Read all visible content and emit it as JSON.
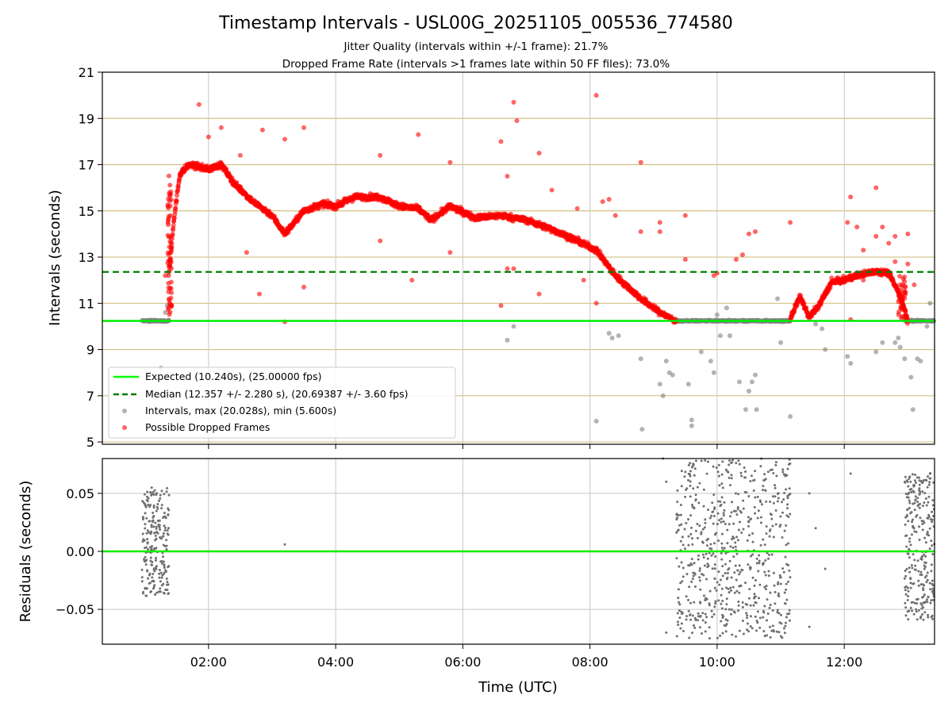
{
  "chart_data": [
    {
      "type": "scatter",
      "title": "Timestamp Intervals - USL00G_20251105_005536_774580",
      "subtitle_lines": [
        "Jitter Quality (intervals within +/-1 frame): 21.7%",
        "Dropped Frame Rate (intervals >1 frames late within 50 FF files): 73.0%"
      ],
      "xlabel": "",
      "ylabel": "Intervals (seconds)",
      "xlim_hours": [
        0.33,
        13.42
      ],
      "ylim": [
        4.9,
        21
      ],
      "yticks": [
        5,
        7,
        9,
        11,
        13,
        15,
        17,
        19,
        21
      ],
      "ytick_labels": [
        "5",
        "7",
        "9",
        "11",
        "13",
        "15",
        "17",
        "19",
        "21"
      ],
      "xticks_hours": [
        2,
        4,
        6,
        8,
        10,
        12
      ],
      "grid": "on",
      "legend_position": "lower-left",
      "legend": [
        "Expected (10.240s), (25.00000 fps)",
        "Median (12.357 +/- 2.280 s), (20.69387 +/- 3.60 fps)",
        "Intervals, max (20.028s), min (5.600s)",
        "Possible Dropped Frames"
      ],
      "expected_interval": 10.24,
      "median_interval": 12.357,
      "series": [
        {
          "name": "Intervals (normal)",
          "color": "#808080",
          "segments": [
            {
              "x_range": [
                0.95,
                1.38
              ],
              "y": 10.24
            },
            {
              "x_range": [
                9.35,
                11.15
              ],
              "y": 10.24
            },
            {
              "x_range": [
                12.95,
                13.42
              ],
              "y": 10.24
            }
          ],
          "outliers": [
            [
              1.32,
              10.6
            ],
            [
              1.35,
              10.9
            ],
            [
              1.25,
              8.2
            ],
            [
              6.7,
              9.4
            ],
            [
              6.8,
              10.0
            ],
            [
              8.1,
              5.9
            ],
            [
              8.3,
              9.7
            ],
            [
              8.35,
              9.5
            ],
            [
              8.45,
              9.6
            ],
            [
              8.8,
              8.6
            ],
            [
              8.82,
              5.55
            ],
            [
              9.1,
              7.5
            ],
            [
              9.15,
              7.0
            ],
            [
              9.2,
              8.5
            ],
            [
              9.25,
              8.0
            ],
            [
              9.3,
              7.9
            ],
            [
              9.55,
              7.5
            ],
            [
              9.6,
              5.7
            ],
            [
              9.6,
              5.95
            ],
            [
              9.75,
              8.9
            ],
            [
              9.9,
              8.5
            ],
            [
              9.95,
              8.0
            ],
            [
              10.0,
              10.5
            ],
            [
              10.05,
              9.6
            ],
            [
              10.15,
              10.8
            ],
            [
              10.2,
              9.6
            ],
            [
              10.35,
              7.6
            ],
            [
              10.45,
              6.4
            ],
            [
              10.5,
              7.2
            ],
            [
              10.55,
              7.6
            ],
            [
              10.6,
              7.9
            ],
            [
              10.62,
              6.4
            ],
            [
              10.95,
              11.2
            ],
            [
              11.0,
              9.3
            ],
            [
              11.15,
              6.1
            ],
            [
              11.55,
              10.1
            ],
            [
              11.65,
              9.9
            ],
            [
              11.7,
              9.0
            ],
            [
              12.05,
              8.7
            ],
            [
              12.1,
              8.4
            ],
            [
              12.5,
              8.9
            ],
            [
              12.6,
              9.3
            ],
            [
              12.8,
              9.3
            ],
            [
              12.85,
              9.5
            ],
            [
              12.88,
              9.1
            ],
            [
              12.95,
              8.6
            ],
            [
              13.05,
              7.8
            ],
            [
              13.08,
              6.4
            ],
            [
              13.15,
              8.6
            ],
            [
              13.2,
              8.5
            ],
            [
              13.3,
              10.0
            ],
            [
              13.35,
              11.0
            ]
          ]
        },
        {
          "name": "Possible Dropped Frames",
          "color": "#ff0000",
          "trend": [
            [
              1.38,
              12.3
            ],
            [
              1.45,
              14.5
            ],
            [
              1.55,
              16.6
            ],
            [
              1.7,
              17.0
            ],
            [
              2.0,
              16.8
            ],
            [
              2.2,
              17.0
            ],
            [
              2.4,
              16.2
            ],
            [
              2.7,
              15.4
            ],
            [
              3.0,
              14.8
            ],
            [
              3.2,
              14.0
            ],
            [
              3.5,
              15.0
            ],
            [
              3.8,
              15.3
            ],
            [
              4.0,
              15.2
            ],
            [
              4.3,
              15.6
            ],
            [
              4.7,
              15.6
            ],
            [
              5.0,
              15.2
            ],
            [
              5.3,
              15.1
            ],
            [
              5.5,
              14.6
            ],
            [
              5.8,
              15.2
            ],
            [
              6.2,
              14.7
            ],
            [
              6.6,
              14.8
            ],
            [
              7.0,
              14.6
            ],
            [
              7.4,
              14.2
            ],
            [
              7.8,
              13.7
            ],
            [
              8.1,
              13.3
            ],
            [
              8.4,
              12.2
            ],
            [
              8.8,
              11.2
            ],
            [
              9.1,
              10.6
            ],
            [
              9.35,
              10.24
            ],
            [
              11.15,
              10.3
            ],
            [
              11.3,
              11.3
            ],
            [
              11.45,
              10.4
            ],
            [
              11.6,
              10.9
            ],
            [
              11.8,
              11.9
            ],
            [
              12.0,
              12.0
            ],
            [
              12.2,
              12.2
            ],
            [
              12.5,
              12.4
            ],
            [
              12.7,
              12.3
            ],
            [
              12.9,
              11.2
            ],
            [
              13.0,
              10.2
            ]
          ],
          "outliers": [
            [
              1.32,
              12.2
            ],
            [
              1.85,
              19.6
            ],
            [
              2.0,
              18.2
            ],
            [
              2.2,
              18.6
            ],
            [
              2.5,
              17.4
            ],
            [
              2.85,
              18.5
            ],
            [
              2.8,
              11.4
            ],
            [
              3.2,
              18.1
            ],
            [
              3.2,
              10.2
            ],
            [
              3.5,
              18.6
            ],
            [
              3.5,
              11.7
            ],
            [
              2.6,
              13.2
            ],
            [
              4.7,
              17.4
            ],
            [
              5.3,
              18.3
            ],
            [
              4.7,
              13.7
            ],
            [
              5.2,
              12.0
            ],
            [
              5.8,
              17.1
            ],
            [
              5.8,
              13.2
            ],
            [
              6.6,
              18.0
            ],
            [
              6.6,
              10.9
            ],
            [
              6.7,
              16.5
            ],
            [
              6.7,
              12.5
            ],
            [
              6.8,
              19.7
            ],
            [
              6.85,
              18.9
            ],
            [
              6.8,
              12.5
            ],
            [
              7.2,
              17.5
            ],
            [
              7.2,
              11.4
            ],
            [
              7.4,
              15.9
            ],
            [
              7.8,
              15.1
            ],
            [
              7.9,
              12.0
            ],
            [
              8.1,
              20.0
            ],
            [
              8.1,
              11.0
            ],
            [
              8.2,
              15.4
            ],
            [
              8.3,
              15.5
            ],
            [
              8.4,
              14.8
            ],
            [
              8.8,
              17.1
            ],
            [
              8.8,
              14.1
            ],
            [
              9.1,
              14.5
            ],
            [
              9.1,
              14.1
            ],
            [
              9.5,
              14.8
            ],
            [
              9.5,
              12.9
            ],
            [
              9.95,
              12.2
            ],
            [
              10.0,
              12.3
            ],
            [
              10.3,
              12.9
            ],
            [
              10.4,
              13.1
            ],
            [
              10.5,
              14.0
            ],
            [
              10.6,
              14.1
            ],
            [
              11.15,
              14.5
            ],
            [
              11.8,
              12.1
            ],
            [
              12.05,
              14.5
            ],
            [
              12.1,
              15.6
            ],
            [
              12.1,
              10.3
            ],
            [
              12.2,
              14.3
            ],
            [
              12.3,
              13.3
            ],
            [
              12.3,
              12.0
            ],
            [
              12.5,
              13.9
            ],
            [
              12.5,
              16.0
            ],
            [
              12.6,
              14.3
            ],
            [
              12.7,
              13.6
            ],
            [
              12.8,
              13.9
            ],
            [
              12.8,
              12.8
            ],
            [
              12.85,
              11.5
            ],
            [
              13.0,
              14.0
            ],
            [
              13.0,
              12.7
            ],
            [
              13.1,
              11.8
            ]
          ]
        }
      ]
    },
    {
      "type": "scatter",
      "title": "",
      "xlabel": "Time (UTC)",
      "ylabel": "Residuals (seconds)",
      "xlim_hours": [
        0.33,
        13.42
      ],
      "ylim": [
        -0.08,
        0.08
      ],
      "yticks": [
        -0.05,
        0.0,
        0.05
      ],
      "ytick_labels": [
        "−0.05",
        "0.00",
        "0.05"
      ],
      "xticks_hours": [
        2,
        4,
        6,
        8,
        10,
        12
      ],
      "xtick_labels": [
        "02:00",
        "04:00",
        "06:00",
        "08:00",
        "10:00",
        "12:00"
      ],
      "grid": "on",
      "zero_line": 0.0,
      "series": [
        {
          "name": "Residuals",
          "color": "#707070",
          "clusters": [
            {
              "x_range": [
                0.95,
                1.38
              ],
              "y_range": [
                -0.04,
                0.055
              ],
              "count": 230
            },
            {
              "x_range": [
                9.35,
                11.15
              ],
              "y_range": [
                -0.075,
                0.08
              ],
              "count": 620
            },
            {
              "x_range": [
                12.95,
                13.42
              ],
              "y_range": [
                -0.06,
                0.068
              ],
              "count": 260
            }
          ],
          "extra_points": [
            [
              3.2,
              0.006
            ],
            [
              9.15,
              0.08
            ],
            [
              9.2,
              0.06
            ],
            [
              11.45,
              0.05
            ],
            [
              11.55,
              0.02
            ],
            [
              11.7,
              -0.015
            ],
            [
              11.45,
              -0.065
            ],
            [
              12.1,
              0.067
            ],
            [
              9.2,
              -0.07
            ]
          ]
        }
      ]
    }
  ]
}
